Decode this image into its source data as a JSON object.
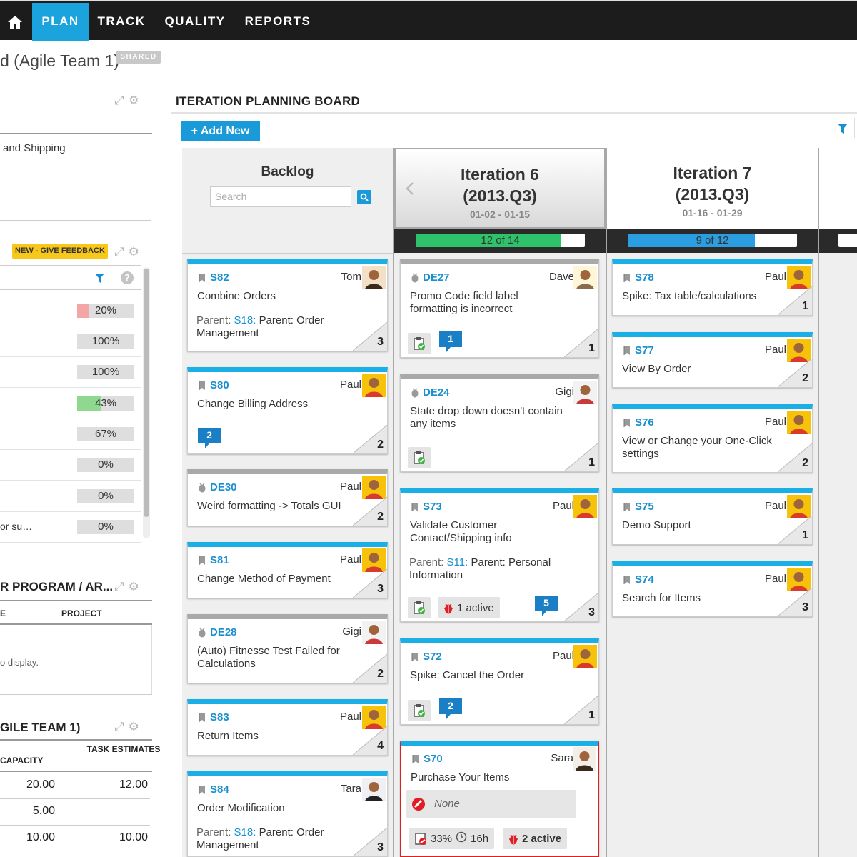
{
  "nav": {
    "items": [
      {
        "label": "PLAN",
        "active": true
      },
      {
        "label": "TRACK",
        "active": false
      },
      {
        "label": "QUALITY",
        "active": false
      },
      {
        "label": "REPORTS",
        "active": false
      }
    ]
  },
  "page": {
    "title": "d (Agile Team 1)",
    "badge": "SHARED"
  },
  "left": {
    "panel1_text": "and Shipping",
    "feedback_badge": "NEW - GIVE FEEDBACK",
    "progress_rows": [
      {
        "value": "20%",
        "fraction": 0.2,
        "color": "#f4a6a6",
        "label": ""
      },
      {
        "value": "100%",
        "fraction": 0,
        "color": "#cfcfcf",
        "label": ""
      },
      {
        "value": "100%",
        "fraction": 0,
        "color": "#cfcfcf",
        "label": ""
      },
      {
        "value": "43%",
        "fraction": 0.43,
        "color": "#8fd88f",
        "label": ""
      },
      {
        "value": "67%",
        "fraction": 0,
        "color": "#cfcfcf",
        "label": ""
      },
      {
        "value": "0%",
        "fraction": 0,
        "color": "#cfcfcf",
        "label": ""
      },
      {
        "value": "0%",
        "fraction": 0,
        "color": "#cfcfcf",
        "label": ""
      },
      {
        "value": "0%",
        "fraction": 0,
        "color": "#cfcfcf",
        "label": "or su…"
      }
    ],
    "program_title": "R PROGRAM / AR...",
    "program_col_e": "E",
    "program_col_project": "PROJECT",
    "program_empty": "o display.",
    "team_title": "GILE TEAM 1)",
    "team_col_capacity": "CAPACITY",
    "team_col_task": "TASK ESTIMATES",
    "team_rows": [
      {
        "capacity": "20.00",
        "task": "12.00"
      },
      {
        "capacity": "5.00",
        "task": ""
      },
      {
        "capacity": "10.00",
        "task": "10.00"
      }
    ]
  },
  "board": {
    "title": "ITERATION PLANNING BOARD",
    "add_new": "+ Add New",
    "backlog": {
      "title": "Backlog",
      "search_placeholder": "Search"
    },
    "iterations": [
      {
        "title_line1": "Iteration 6",
        "title_line2": "(2013.Q3)",
        "dates": "01-02 - 01-15",
        "progress_text": "12 of 14",
        "progress_fraction": 0.86,
        "progress_color": "#2ec36a"
      },
      {
        "title_line1": "Iteration 7",
        "title_line2": "(2013.Q3)",
        "dates": "01-16 - 01-29",
        "progress_text": "9 of 12",
        "progress_fraction": 0.75,
        "progress_color": "#2a9ee0"
      }
    ],
    "backlog_cards": [
      {
        "id": "S82",
        "type": "story",
        "owner": "Tom",
        "title": "Combine Orders",
        "parent_label": "Parent:",
        "parent_id": "S18:",
        "parent_text": "Parent: Order",
        "parent_text2": "Management",
        "estimate": "3"
      },
      {
        "id": "S80",
        "type": "story",
        "owner": "Paul",
        "title": "Change Billing Address",
        "comments": "2",
        "estimate": "2"
      },
      {
        "id": "DE30",
        "type": "defect",
        "owner": "Paul",
        "title": "Weird formatting -> Totals GUI",
        "estimate": "2"
      },
      {
        "id": "S81",
        "type": "story",
        "owner": "Paul",
        "title": "Change Method of Payment",
        "estimate": "3"
      },
      {
        "id": "DE28",
        "type": "defect",
        "owner": "Gigi",
        "title": "(Auto) Fitnesse Test Failed for",
        "title2": "Calculations",
        "estimate": "2"
      },
      {
        "id": "S83",
        "type": "story",
        "owner": "Paul",
        "title": "Return Items",
        "estimate": "4"
      },
      {
        "id": "S84",
        "type": "story",
        "owner": "Tara",
        "title": "Order Modification",
        "parent_label": "Parent:",
        "parent_id": "S18:",
        "parent_text": "Parent: Order",
        "parent_text2": "Management",
        "estimate": "3"
      }
    ],
    "iter6_cards": [
      {
        "id": "DE27",
        "type": "defect",
        "owner": "Dave",
        "title": "Promo Code field label",
        "title2": "formatting is incorrect",
        "comments": "1",
        "estimate": "1"
      },
      {
        "id": "DE24",
        "type": "defect",
        "owner": "Gigi",
        "title": "State drop down doesn't contain",
        "title2": "any items",
        "estimate": "1"
      },
      {
        "id": "S73",
        "type": "story",
        "owner": "Paul",
        "title": "Validate Customer",
        "title2": "Contact/Shipping info",
        "parent_label": "Parent:",
        "parent_id": "S11:",
        "parent_text": "Parent: Personal",
        "parent_text2": "Information",
        "defects_active": "1 active",
        "comments": "5",
        "estimate": "3"
      },
      {
        "id": "S72",
        "type": "story",
        "owner": "Paul",
        "title": "Spike: Cancel the Order",
        "comments": "2",
        "estimate": "1"
      },
      {
        "id": "S70",
        "type": "story",
        "owner": "Sara",
        "title": "Purchase Your Items",
        "blocker": "None",
        "task_pct": "33%",
        "time": "16h",
        "defects_active": "2 active"
      }
    ],
    "iter7_cards": [
      {
        "id": "S78",
        "type": "story",
        "owner": "Paul",
        "title": "Spike: Tax table/calculations",
        "estimate": "1"
      },
      {
        "id": "S77",
        "type": "story",
        "owner": "Paul",
        "title": "View By Order",
        "estimate": "2"
      },
      {
        "id": "S76",
        "type": "story",
        "owner": "Paul",
        "title": "View or Change your One-Click",
        "title2": "settings",
        "estimate": "2"
      },
      {
        "id": "S75",
        "type": "story",
        "owner": "Paul",
        "title": "Demo Support",
        "estimate": "1"
      },
      {
        "id": "S74",
        "type": "story",
        "owner": "Paul",
        "title": "Search for Items",
        "estimate": "3"
      }
    ]
  }
}
